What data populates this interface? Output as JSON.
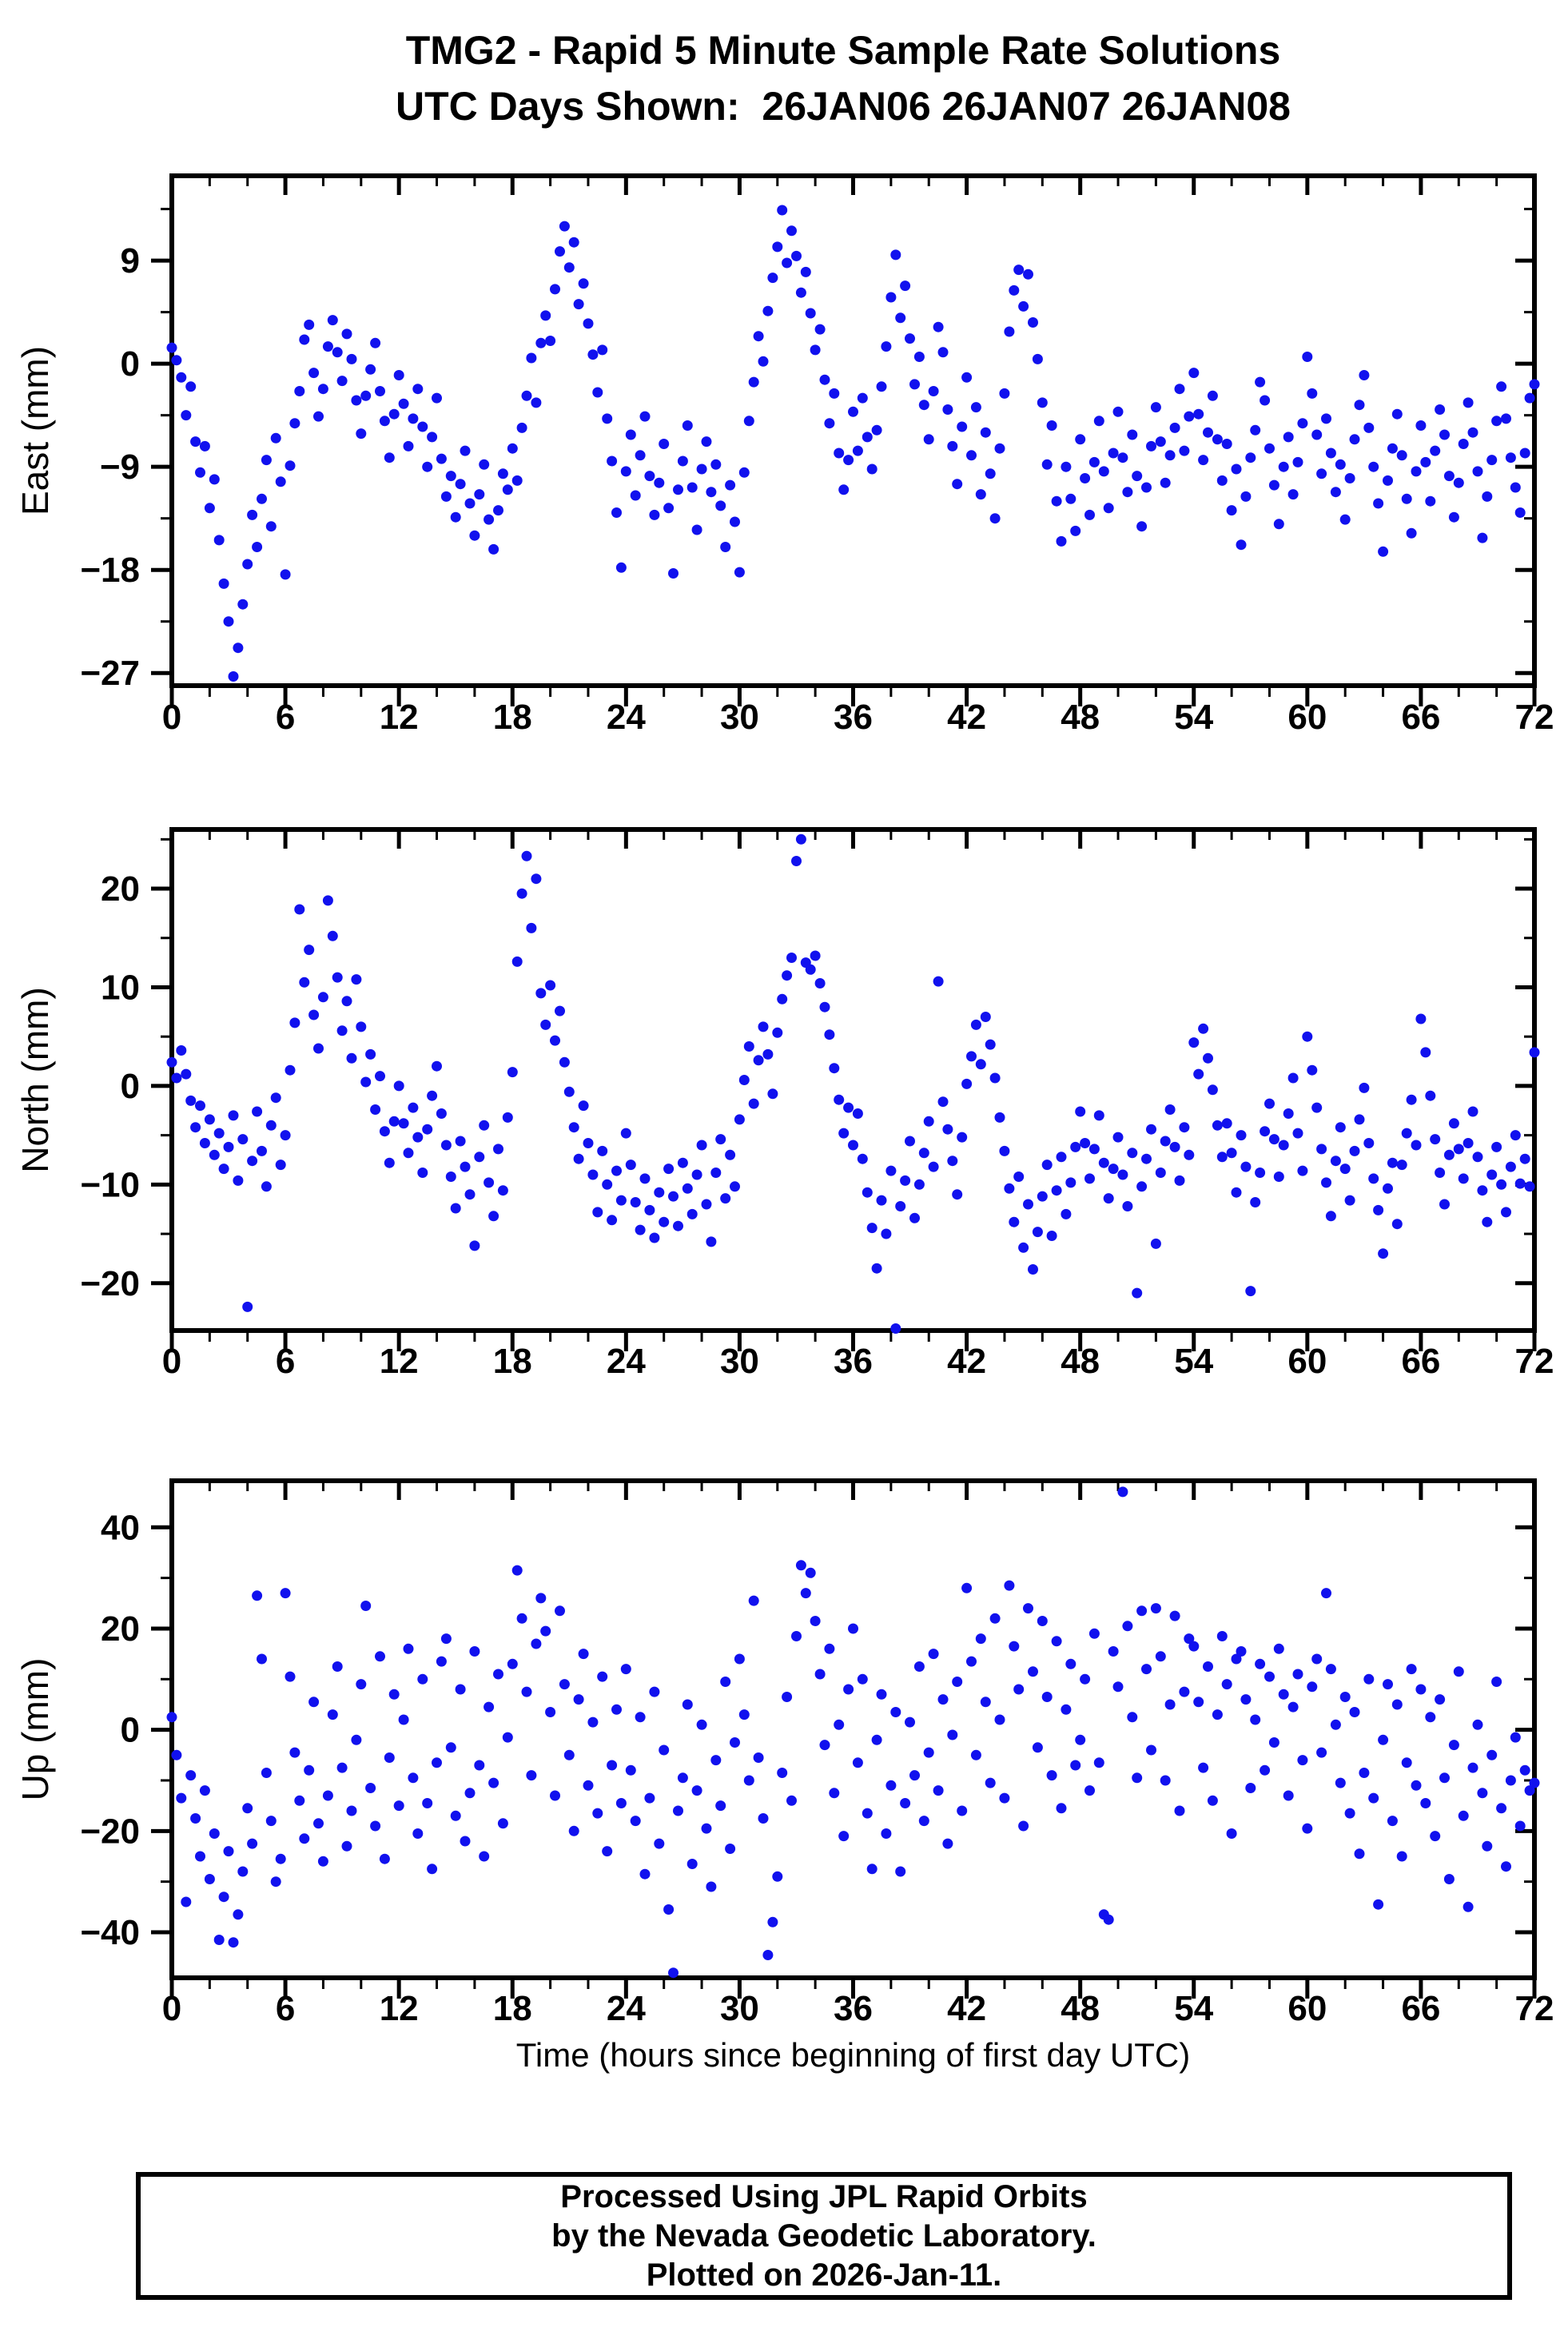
{
  "page": {
    "title_line1": "TMG2 - Rapid 5 Minute Sample Rate Solutions",
    "title_line2": "UTC Days Shown:  26JAN06 26JAN07 26JAN08",
    "footer": [
      "Processed Using JPL Rapid Orbits",
      "by the Nevada Geodetic Laboratory.",
      "Plotted on 2026-Jan-11."
    ]
  },
  "chart_data": {
    "type": "scatter",
    "title": "TMG2 - Rapid 5 Minute Sample Rate Solutions",
    "subtitle": "UTC Days Shown:  26JAN06 26JAN07 26JAN08",
    "xlabel": "Time (hours since beginning of first day UTC)",
    "x_definition": {
      "x0": 0,
      "dx": 0.25,
      "unit": "hours"
    },
    "xlim": [
      0,
      72
    ],
    "xticks": [
      0,
      6,
      12,
      18,
      24,
      30,
      36,
      42,
      48,
      54,
      60,
      66,
      72
    ],
    "x_minor_step": 2,
    "point_color": "#1111EE",
    "frame_color": "#000000",
    "grid": false,
    "legend": "none",
    "panels": [
      {
        "name": "East",
        "ylabel": "East (mm)",
        "ylim": [
          -28.1,
          16.4
        ],
        "yticks": [
          9,
          0,
          -9,
          -18,
          -27
        ],
        "y_minor_step": 4.5,
        "y": [
          1.4,
          0.3,
          -1.2,
          -4.5,
          -2.0,
          -6.8,
          -9.5,
          -7.2,
          -12.6,
          -10.1,
          -15.4,
          -19.2,
          -22.5,
          -27.3,
          -24.8,
          -21.0,
          -17.5,
          -13.2,
          -16.0,
          -11.8,
          -8.4,
          -14.2,
          -6.5,
          -10.3,
          -18.4,
          -8.9,
          -5.2,
          -2.4,
          2.1,
          3.4,
          -0.8,
          -4.6,
          -2.2,
          1.5,
          3.8,
          1.0,
          -1.5,
          2.6,
          0.4,
          -3.2,
          -6.1,
          -2.8,
          -0.5,
          1.8,
          -2.4,
          -5.0,
          -8.2,
          -4.4,
          -1.0,
          -3.5,
          -7.2,
          -4.8,
          -2.2,
          -5.5,
          -9.0,
          -6.4,
          -3.0,
          -8.3,
          -11.6,
          -9.8,
          -13.4,
          -10.5,
          -7.6,
          -12.2,
          -15.0,
          -11.4,
          -8.8,
          -13.6,
          -16.2,
          -12.8,
          -9.6,
          -11.0,
          -7.4,
          -10.2,
          -5.6,
          -2.8,
          0.5,
          -3.4,
          1.8,
          4.2,
          2.0,
          6.5,
          9.8,
          12.0,
          8.4,
          10.6,
          5.2,
          7.0,
          3.5,
          0.8,
          -2.5,
          1.2,
          -4.8,
          -8.5,
          -13.0,
          -17.8,
          -9.4,
          -6.2,
          -11.5,
          -8.0,
          -4.6,
          -9.8,
          -13.2,
          -10.4,
          -7.0,
          -12.6,
          -18.3,
          -11.0,
          -8.5,
          -5.4,
          -10.8,
          -14.5,
          -9.2,
          -6.8,
          -11.2,
          -8.8,
          -12.4,
          -16.0,
          -10.6,
          -13.8,
          -18.2,
          -9.5,
          -5.0,
          -1.6,
          2.4,
          0.2,
          4.6,
          7.5,
          10.2,
          13.4,
          8.8,
          11.6,
          9.4,
          6.2,
          8.0,
          4.4,
          1.2,
          3.0,
          -1.4,
          -5.2,
          -2.6,
          -7.8,
          -11.0,
          -8.4,
          -4.2,
          -7.6,
          -3.0,
          -6.4,
          -9.2,
          -5.8,
          -2.0,
          1.5,
          5.8,
          9.5,
          4.0,
          6.8,
          2.2,
          -1.8,
          0.6,
          -3.6,
          -6.6,
          -2.4,
          3.2,
          1.0,
          -4.0,
          -7.2,
          -10.5,
          -5.5,
          -1.2,
          -8.0,
          -3.8,
          -11.4,
          -6.0,
          -9.6,
          -13.5,
          -7.4,
          -2.6,
          2.8,
          6.4,
          8.2,
          5.0,
          7.8,
          3.6,
          0.4,
          -3.4,
          -8.8,
          -5.4,
          -12.0,
          -15.5,
          -9.0,
          -11.8,
          -14.6,
          -6.6,
          -10.0,
          -13.2,
          -8.6,
          -5.0,
          -9.4,
          -12.6,
          -7.8,
          -4.2,
          -8.2,
          -11.2,
          -6.2,
          -9.8,
          -14.2,
          -10.8,
          -7.2,
          -3.8,
          -6.8,
          -10.4,
          -8.0,
          -5.6,
          -2.2,
          -7.6,
          -4.6,
          -0.8,
          -4.4,
          -8.4,
          -6.0,
          -2.8,
          -6.6,
          -10.2,
          -7.0,
          -12.8,
          -9.2,
          -15.8,
          -11.6,
          -8.2,
          -5.8,
          -1.6,
          -3.2,
          -7.4,
          -10.6,
          -14.0,
          -9.0,
          -6.4,
          -11.4,
          -8.6,
          -5.2,
          0.6,
          -2.6,
          -6.2,
          -9.6,
          -4.8,
          -7.8,
          -11.2,
          -8.8,
          -13.6,
          -10.0,
          -6.6,
          -3.6,
          -1.0,
          -5.6,
          -9.0,
          -12.2,
          -16.4,
          -10.2,
          -7.4,
          -4.4,
          -8.0,
          -11.8,
          -14.8,
          -9.4,
          -5.4,
          -8.6,
          -12.0,
          -7.6,
          -4.0,
          -6.2,
          -9.8,
          -13.4,
          -10.4,
          -7.0,
          -3.4,
          -6.0,
          -9.4,
          -15.2,
          -11.6,
          -8.4,
          -5.0,
          -2.0,
          -4.8,
          -8.2,
          -10.8,
          -13.0,
          -7.8,
          -3.0,
          -1.8
        ]
      },
      {
        "name": "North",
        "ylabel": "North (mm)",
        "ylim": [
          -24.8,
          26.0
        ],
        "yticks": [
          20,
          10,
          0,
          -10,
          -20
        ],
        "y_minor_step": 5,
        "y": [
          2.4,
          0.8,
          3.6,
          1.2,
          -1.5,
          -4.2,
          -2.0,
          -5.8,
          -3.4,
          -7.0,
          -4.8,
          -8.4,
          -6.2,
          -3.0,
          -9.6,
          -5.4,
          -22.4,
          -7.6,
          -2.6,
          -6.6,
          -10.2,
          -4.0,
          -1.2,
          -8.0,
          -5.0,
          1.6,
          6.4,
          17.9,
          10.5,
          13.8,
          7.2,
          3.8,
          9.0,
          18.8,
          15.2,
          11.0,
          5.6,
          8.6,
          2.8,
          10.8,
          6.0,
          0.4,
          3.2,
          -2.4,
          1.0,
          -4.6,
          -7.8,
          -3.6,
          0.0,
          -3.8,
          -6.8,
          -2.2,
          -5.2,
          -8.8,
          -4.4,
          -1.0,
          2.0,
          -2.8,
          -6.0,
          -9.2,
          -12.4,
          -5.6,
          -8.2,
          -11.0,
          -16.2,
          -7.2,
          -4.0,
          -9.8,
          -13.2,
          -6.4,
          -10.6,
          -3.2,
          1.4,
          12.6,
          19.5,
          23.3,
          16.0,
          21.0,
          9.4,
          6.2,
          10.2,
          4.6,
          7.6,
          2.4,
          -0.6,
          -4.2,
          -7.4,
          -2.0,
          -5.8,
          -9.0,
          -12.8,
          -6.6,
          -10.0,
          -13.6,
          -8.6,
          -11.6,
          -4.8,
          -8.0,
          -11.8,
          -14.6,
          -9.4,
          -12.6,
          -15.4,
          -10.8,
          -13.8,
          -8.4,
          -11.2,
          -14.2,
          -7.8,
          -10.4,
          -13.0,
          -9.0,
          -6.0,
          -12.0,
          -15.8,
          -8.8,
          -5.4,
          -11.4,
          -7.0,
          -10.2,
          -3.4,
          0.6,
          4.0,
          -1.8,
          2.6,
          6.0,
          3.2,
          -0.8,
          5.4,
          8.8,
          11.2,
          13.0,
          22.8,
          25.0,
          12.5,
          11.8,
          13.2,
          10.4,
          8.0,
          5.2,
          1.8,
          -1.4,
          -4.8,
          -2.2,
          -6.0,
          -2.8,
          -7.4,
          -10.8,
          -14.4,
          -18.5,
          -11.6,
          -15.0,
          -8.6,
          -24.6,
          -12.2,
          -9.6,
          -5.6,
          -13.4,
          -10.0,
          -6.8,
          -3.6,
          -8.2,
          10.6,
          -1.6,
          -4.4,
          -7.6,
          -11.0,
          -5.2,
          0.2,
          3.0,
          6.2,
          2.2,
          7.0,
          4.2,
          0.8,
          -3.2,
          -6.6,
          -10.4,
          -13.8,
          -9.2,
          -16.4,
          -12.0,
          -18.6,
          -14.8,
          -11.2,
          -8.0,
          -15.2,
          -10.6,
          -7.2,
          -13.0,
          -9.8,
          -6.2,
          -2.6,
          -5.8,
          -9.4,
          -6.4,
          -3.0,
          -7.8,
          -11.4,
          -8.4,
          -5.2,
          -9.0,
          -12.2,
          -6.8,
          -21.0,
          -10.2,
          -7.4,
          -4.4,
          -16.0,
          -8.8,
          -5.6,
          -2.4,
          -6.2,
          -9.6,
          -4.2,
          -7.0,
          4.4,
          1.2,
          5.8,
          2.8,
          -0.4,
          -4.0,
          -7.2,
          -3.8,
          -6.8,
          -10.8,
          -5.0,
          -8.2,
          -20.8,
          -11.8,
          -8.8,
          -4.6,
          -1.8,
          -5.4,
          -9.2,
          -6.0,
          -2.8,
          0.8,
          -4.8,
          -8.6,
          5.0,
          1.6,
          -2.2,
          -6.4,
          -9.8,
          -13.2,
          -7.6,
          -4.2,
          -8.4,
          -11.6,
          -6.6,
          -3.4,
          -0.2,
          -5.8,
          -9.4,
          -12.6,
          -17.0,
          -10.4,
          -7.8,
          -14.0,
          -8.0,
          -4.8,
          -1.4,
          -6.0,
          6.8,
          3.4,
          -1.0,
          -5.4,
          -8.8,
          -12.0,
          -7.0,
          -3.8,
          -6.4,
          -9.4,
          -5.8,
          -2.6,
          -7.2,
          -10.6,
          -13.8,
          -9.0,
          -6.2,
          -10.0,
          -12.8,
          -8.2,
          -5.0,
          -9.9,
          -7.4,
          -10.2,
          3.4
        ]
      },
      {
        "name": "Up",
        "ylabel": "Up (mm)",
        "ylim": [
          -49.0,
          49.2
        ],
        "yticks": [
          40,
          20,
          0,
          -20,
          -40
        ],
        "y_minor_step": 10,
        "y": [
          2.5,
          -5.0,
          -13.5,
          -34.0,
          -9.0,
          -17.5,
          -25.0,
          -12.0,
          -29.5,
          -20.5,
          -41.5,
          -33.0,
          -24.0,
          -42.0,
          -36.5,
          -28.0,
          -15.5,
          -22.5,
          26.5,
          14.0,
          -8.5,
          -18.0,
          -30.0,
          -25.5,
          27.0,
          10.5,
          -4.5,
          -14.0,
          -21.5,
          -8.0,
          5.5,
          -18.5,
          -26.0,
          -13.0,
          3.0,
          12.5,
          -7.5,
          -23.0,
          -16.0,
          -2.0,
          9.0,
          24.5,
          -11.5,
          -19.0,
          14.5,
          -25.5,
          -5.5,
          7.0,
          -15.0,
          2.0,
          16.0,
          -9.5,
          -20.5,
          10.0,
          -14.5,
          -27.5,
          -6.5,
          13.5,
          18.0,
          -3.5,
          -17.0,
          8.0,
          -22.0,
          -12.5,
          15.5,
          -7.0,
          -25.0,
          4.5,
          -10.5,
          11.0,
          -18.5,
          -1.5,
          13.0,
          31.5,
          22.0,
          7.5,
          -9.0,
          17.0,
          26.0,
          19.5,
          3.5,
          -13.0,
          23.5,
          9.0,
          -5.0,
          -20.0,
          6.0,
          15.0,
          -11.0,
          1.5,
          -16.5,
          10.5,
          -24.0,
          -7.0,
          4.0,
          -14.5,
          12.0,
          -8.0,
          -18.0,
          2.5,
          -28.5,
          -13.5,
          7.5,
          -22.5,
          -4.0,
          -35.5,
          -48.0,
          -16.0,
          -9.5,
          5.0,
          -26.5,
          -12.0,
          1.0,
          -19.5,
          -31.0,
          -6.0,
          -15.0,
          9.5,
          -23.5,
          -2.5,
          14.0,
          3.0,
          -10.0,
          25.5,
          -5.5,
          -17.5,
          -44.5,
          -38.0,
          -29.0,
          -8.5,
          6.5,
          -14.0,
          18.5,
          32.5,
          27.0,
          31.0,
          21.5,
          11.0,
          -3.0,
          16.0,
          -12.5,
          1.0,
          -21.0,
          8.0,
          20.0,
          -6.5,
          10.0,
          -16.5,
          -27.5,
          -2.0,
          7.0,
          -20.5,
          -11.0,
          3.5,
          -28.0,
          -14.5,
          1.5,
          -9.0,
          12.5,
          -18.0,
          -4.5,
          15.0,
          -12.0,
          6.0,
          -22.5,
          -1.0,
          9.5,
          -16.0,
          28.0,
          13.5,
          -5.0,
          18.0,
          5.5,
          -10.5,
          22.0,
          2.0,
          -13.5,
          28.5,
          16.5,
          8.0,
          -19.0,
          24.0,
          11.5,
          -3.5,
          21.5,
          6.5,
          -9.0,
          17.5,
          -15.5,
          4.0,
          13.0,
          -7.0,
          -2.0,
          10.0,
          -12.0,
          19.0,
          -6.5,
          -36.5,
          -37.5,
          15.5,
          8.5,
          47.0,
          20.5,
          2.5,
          -9.5,
          23.5,
          12.0,
          -4.0,
          24.0,
          14.5,
          -10.0,
          5.0,
          22.5,
          -16.0,
          7.5,
          18.0,
          16.5,
          5.5,
          -7.5,
          12.5,
          -14.0,
          3.0,
          18.5,
          9.0,
          -20.5,
          14.0,
          15.5,
          6.0,
          -11.5,
          2.0,
          13.0,
          -8.0,
          10.5,
          -2.5,
          16.0,
          7.0,
          -13.0,
          4.5,
          11.0,
          -6.0,
          -19.5,
          8.5,
          14.0,
          -4.5,
          27.0,
          12.0,
          1.0,
          -10.5,
          6.5,
          -16.5,
          3.5,
          -24.5,
          -8.5,
          10.0,
          -13.5,
          -34.5,
          -2.0,
          9.0,
          -18.0,
          5.0,
          -25.0,
          -6.5,
          12.0,
          -11.0,
          8.0,
          -14.5,
          2.5,
          -21.0,
          6.0,
          -9.5,
          -29.5,
          -3.0,
          11.5,
          -17.0,
          -35.0,
          -7.5,
          1.0,
          -12.5,
          -23.0,
          -5.0,
          9.5,
          -15.5,
          -27.0,
          -10.0,
          -1.5,
          -19.0,
          -8.0,
          -12.0,
          -10.5
        ]
      }
    ]
  }
}
